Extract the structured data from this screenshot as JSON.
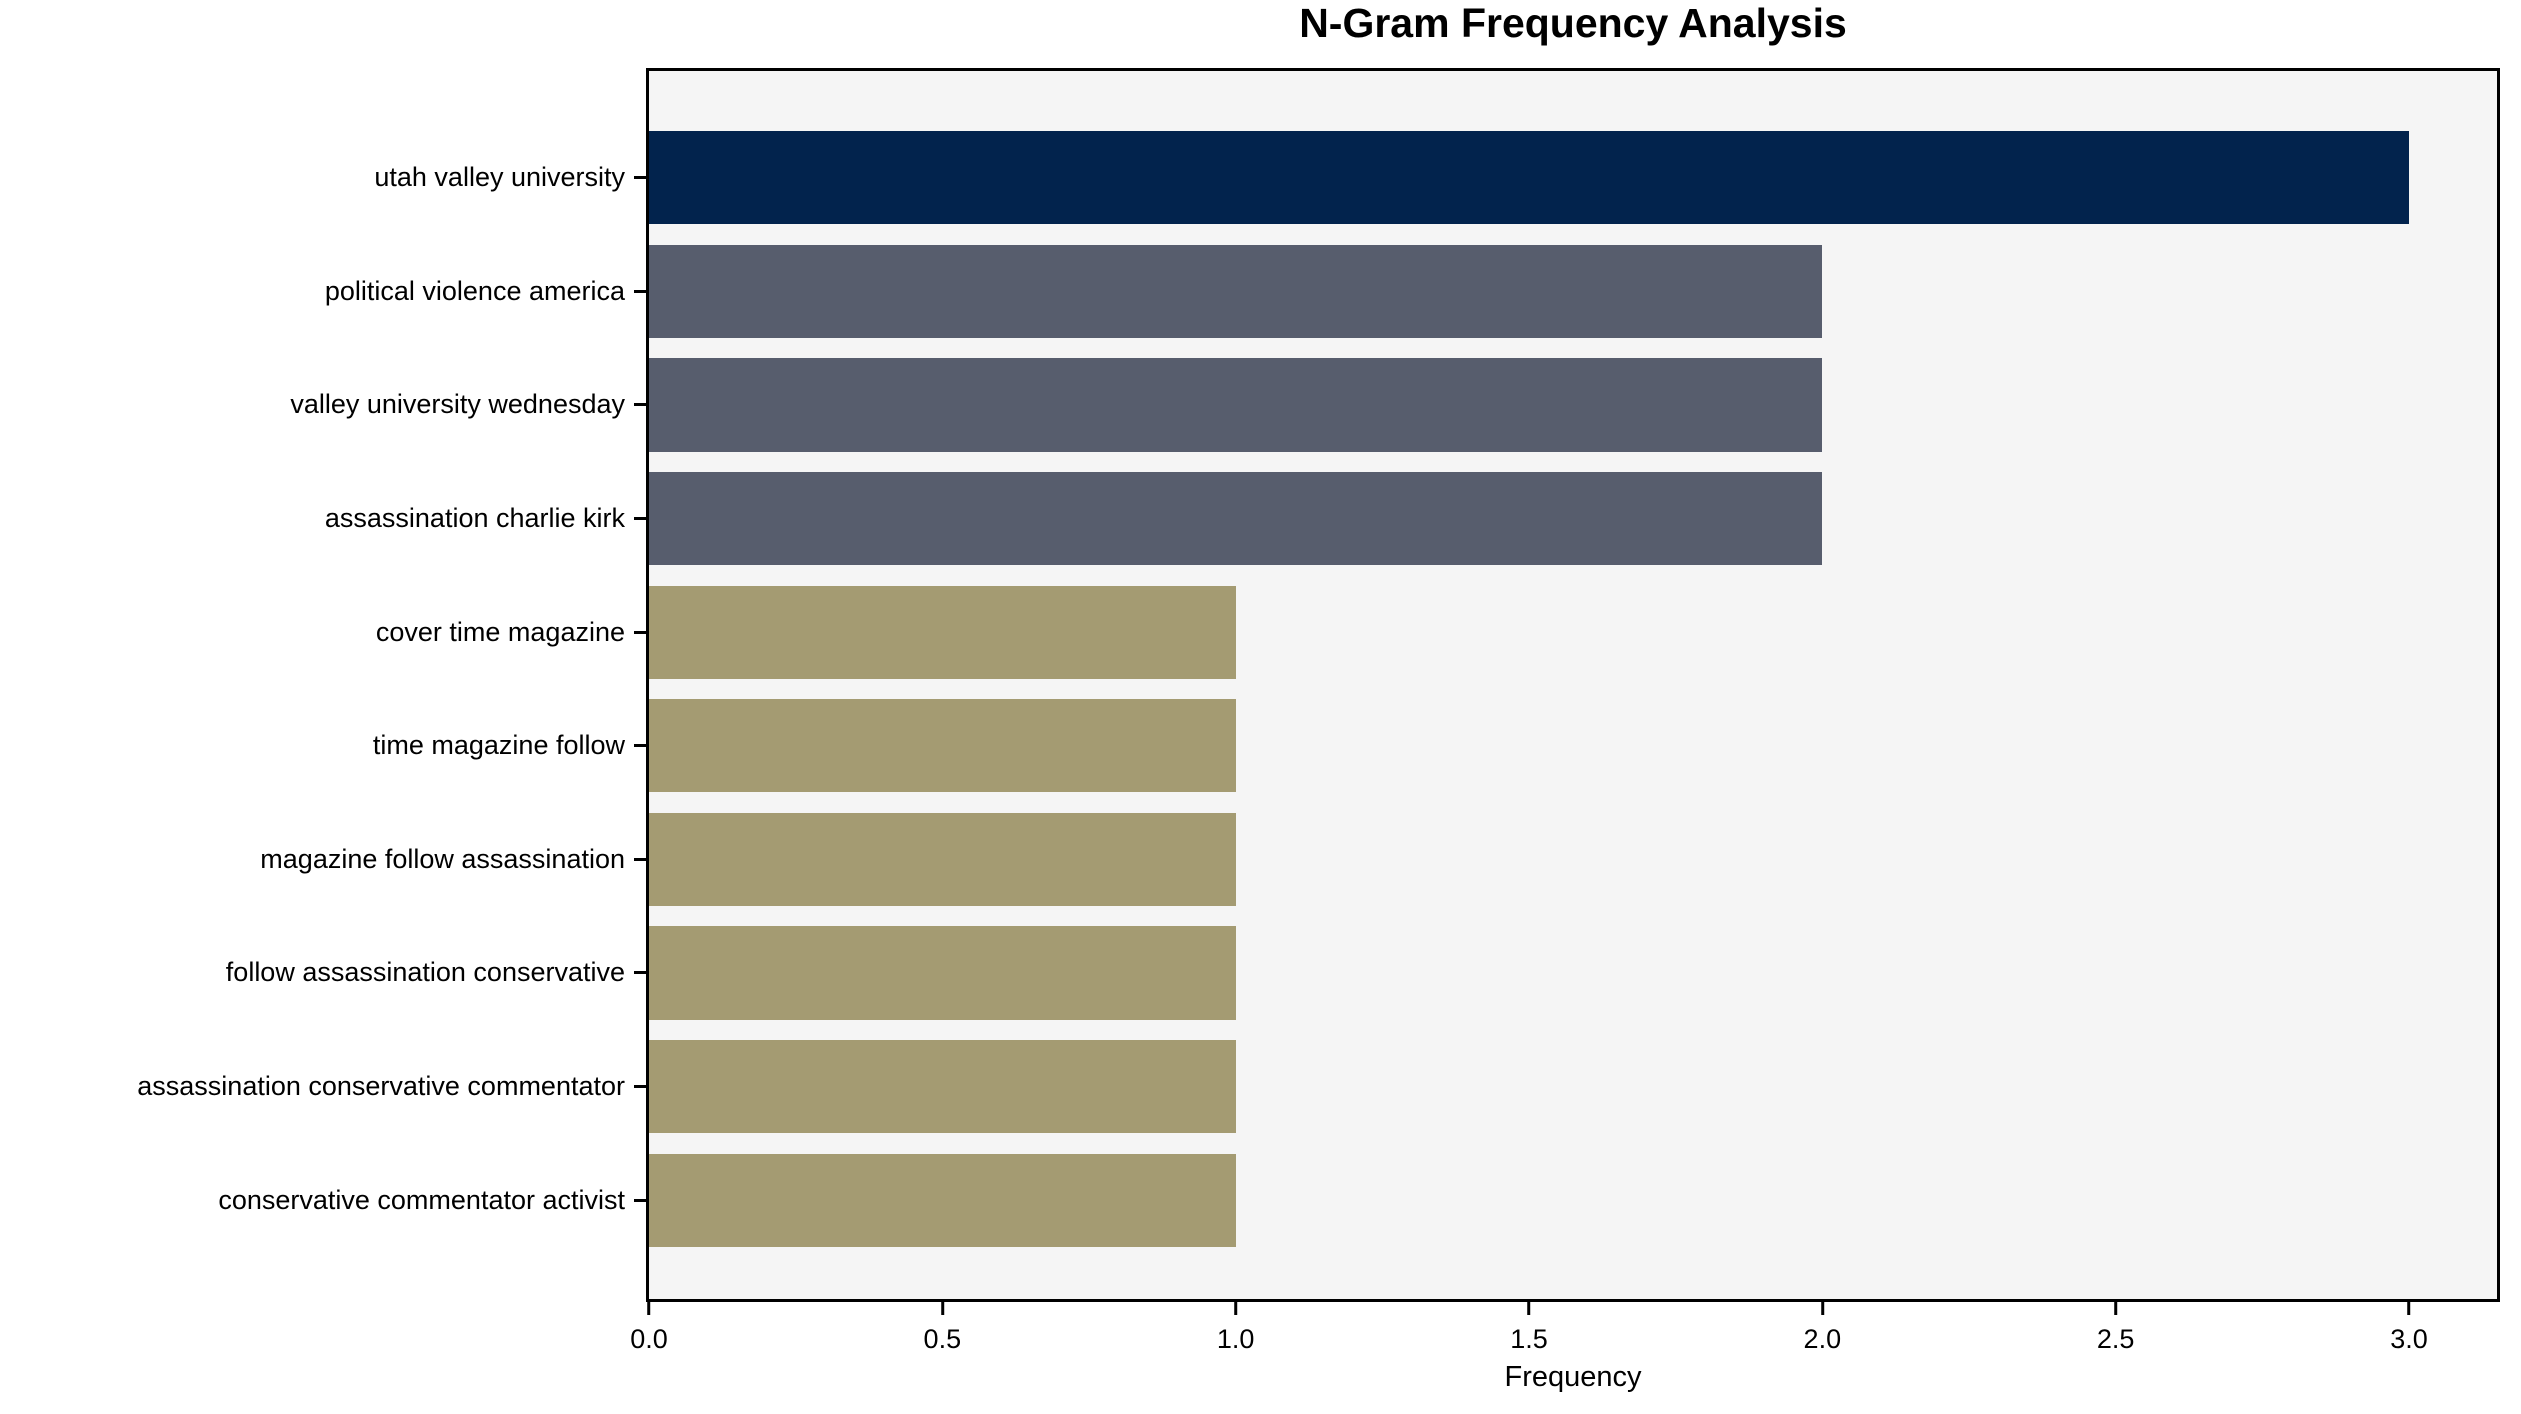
{
  "figure": {
    "title": "N-Gram Frequency Analysis",
    "xlabel": "Frequency"
  },
  "colors": {
    "bar_navy": "#02234d",
    "bar_slate": "#575d6d",
    "bar_olive": "#a49b72",
    "plot_background": "#f5f5f5",
    "figure_background": "#ffffff",
    "spine": "#000000"
  },
  "chart_data": {
    "type": "bar",
    "orientation": "horizontal",
    "title": "N-Gram Frequency Analysis",
    "xlabel": "Frequency",
    "ylabel": "",
    "categories": [
      "utah valley university",
      "political violence america",
      "valley university wednesday",
      "assassination charlie kirk",
      "cover time magazine",
      "time magazine follow",
      "magazine follow assassination",
      "follow assassination conservative",
      "assassination conservative commentator",
      "conservative commentator activist"
    ],
    "values": [
      3,
      2,
      2,
      2,
      1,
      1,
      1,
      1,
      1,
      1
    ],
    "bar_colors": [
      "#02234d",
      "#575d6d",
      "#575d6d",
      "#575d6d",
      "#a49b72",
      "#a49b72",
      "#a49b72",
      "#a49b72",
      "#a49b72",
      "#a49b72"
    ],
    "xlim": [
      0,
      3.15
    ],
    "xticks": [
      0.0,
      0.5,
      1.0,
      1.5,
      2.0,
      2.5,
      3.0
    ],
    "xtick_labels": [
      "0.0",
      "0.5",
      "1.0",
      "1.5",
      "2.0",
      "2.5",
      "3.0"
    ],
    "grid": false,
    "legend_position": "none"
  }
}
